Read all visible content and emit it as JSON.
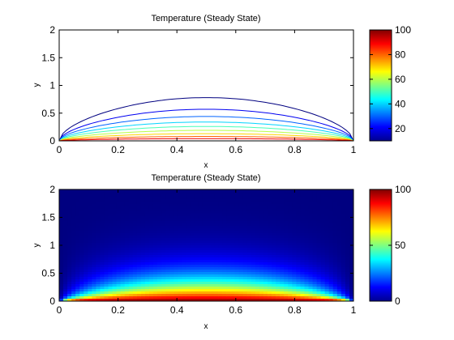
{
  "chart_data": [
    {
      "type": "contour",
      "title": "Temperature (Steady State)",
      "xlabel": "x",
      "ylabel": "y",
      "xlim": [
        0,
        1
      ],
      "ylim": [
        0,
        2
      ],
      "xticks": [
        "0",
        "0.2",
        "0.4",
        "0.6",
        "0.8",
        "1"
      ],
      "yticks": [
        "0",
        "0.5",
        "1",
        "1.5",
        "2"
      ],
      "colormap": "jet",
      "clim": [
        10,
        100
      ],
      "colorbar_ticks": [
        "20",
        "40",
        "60",
        "80",
        "100"
      ],
      "contour_levels": [
        10,
        20,
        30,
        40,
        50,
        60,
        70,
        80,
        90
      ],
      "contour_peak_heights": [
        0.78,
        0.57,
        0.44,
        0.34,
        0.26,
        0.19,
        0.13,
        0.08,
        0.04
      ],
      "boundary_condition": "T = 100 on y = 0, T = 0 on other edges"
    },
    {
      "type": "heatmap",
      "title": "Temperature (Steady State)",
      "xlabel": "x",
      "ylabel": "y",
      "xlim": [
        0,
        1
      ],
      "ylim": [
        0,
        2
      ],
      "xticks": [
        "0",
        "0.2",
        "0.4",
        "0.6",
        "0.8",
        "1"
      ],
      "yticks": [
        "0",
        "0.5",
        "1",
        "1.5",
        "2"
      ],
      "colormap": "jet",
      "clim": [
        0,
        100
      ],
      "colorbar_ticks": [
        "0",
        "50",
        "100"
      ]
    }
  ]
}
